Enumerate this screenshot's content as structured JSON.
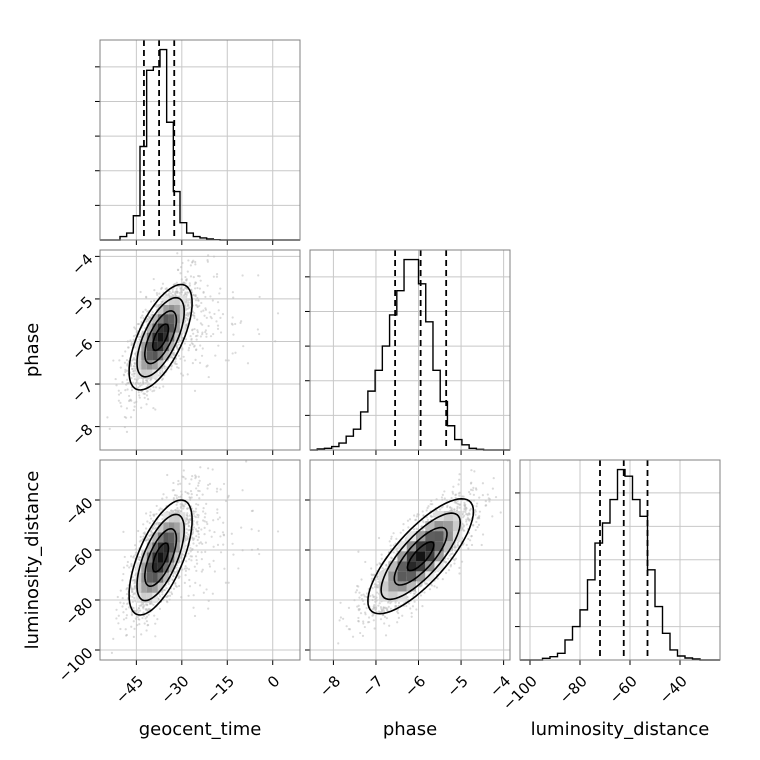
{
  "chart_data": {
    "type": "corner",
    "parameters": [
      "geocent_time",
      "phase",
      "luminosity_distance"
    ],
    "axis_labels": {
      "x": [
        "geocent_time",
        "phase",
        "luminosity_distance"
      ],
      "y": [
        "phase",
        "luminosity_distance"
      ]
    },
    "ranges": {
      "geocent_time": [
        -57,
        9
      ],
      "phase": [
        -8.55,
        -3.85
      ],
      "luminosity_distance": [
        -104,
        -24
      ]
    },
    "ticks": {
      "geocent_time": [
        {
          "v": -45,
          "label": "−45"
        },
        {
          "v": -30,
          "label": "−30"
        },
        {
          "v": -15,
          "label": "−15"
        },
        {
          "v": 0,
          "label": "0"
        }
      ],
      "phase": [
        {
          "v": -8,
          "label": "−8"
        },
        {
          "v": -7,
          "label": "−7"
        },
        {
          "v": -6,
          "label": "−6"
        },
        {
          "v": -5,
          "label": "−5"
        },
        {
          "v": -4,
          "label": "−4"
        }
      ],
      "luminosity_distance": [
        {
          "v": -100,
          "label": "−100"
        },
        {
          "v": -80,
          "label": "−80"
        },
        {
          "v": -60,
          "label": "−60"
        },
        {
          "v": -40,
          "label": "−40"
        }
      ]
    },
    "quantiles": {
      "geocent_time": [
        -42.5,
        -37.5,
        -32.5
      ],
      "phase": [
        -6.55,
        -5.95,
        -5.35
      ],
      "luminosity_distance": [
        -72,
        -62.5,
        -53
      ]
    },
    "histograms": {
      "geocent_time": {
        "bin_edges": [
          -57,
          -54.8,
          -52.6,
          -50.4,
          -48.2,
          -46,
          -43.8,
          -41.6,
          -39.4,
          -37.2,
          -35,
          -32.8,
          -30.6,
          -28.4,
          -26.2,
          -24,
          -21.8,
          -19.6,
          -17.4,
          -15.2,
          -13,
          -10.8,
          -8.6,
          -6.4,
          -4.2,
          -2,
          0.2,
          2.4,
          4.6,
          6.8,
          9
        ],
        "counts": [
          0,
          0,
          0,
          1,
          2,
          7,
          27,
          49,
          50,
          55,
          34,
          14,
          5,
          2,
          1,
          0.6,
          0.3,
          0.1,
          0,
          0,
          0,
          0,
          0,
          0,
          0,
          0,
          0,
          0,
          0,
          0
        ]
      },
      "phase": {
        "bin_edges": [
          -8.55,
          -8.38,
          -8.21,
          -8.04,
          -7.87,
          -7.7,
          -7.53,
          -7.36,
          -7.19,
          -7.02,
          -6.85,
          -6.68,
          -6.51,
          -6.34,
          -6.17,
          -6,
          -5.83,
          -5.66,
          -5.49,
          -5.32,
          -5.15,
          -4.98,
          -4.81,
          -4.64,
          -4.47,
          -4.3,
          -4.13,
          -3.96,
          -3.85
        ],
        "counts": [
          0,
          0.3,
          0.5,
          1,
          2,
          4,
          6,
          11,
          17,
          23,
          30,
          39,
          46,
          55,
          55,
          48,
          37,
          23,
          14,
          7,
          3,
          1.5,
          0.5,
          0.2,
          0,
          0,
          0,
          0
        ]
      },
      "luminosity_distance": {
        "bin_edges": [
          -104,
          -101,
          -98,
          -95,
          -92,
          -89,
          -86,
          -83,
          -80,
          -77,
          -74,
          -71,
          -68,
          -65,
          -62,
          -59,
          -56,
          -53,
          -50,
          -47,
          -44,
          -41,
          -38,
          -35,
          -32,
          -29,
          -26,
          -24
        ],
        "counts": [
          0,
          0,
          0,
          0.5,
          1,
          2,
          6,
          10,
          15,
          24,
          35,
          41,
          48,
          57,
          55,
          48,
          43,
          27,
          16,
          8,
          3,
          1.2,
          0.6,
          0.3,
          0,
          0,
          0
        ]
      }
    },
    "pair_distributions": [
      {
        "x": "geocent_time",
        "y": "phase",
        "center": [
          -37,
          -5.9
        ],
        "sd": [
          5.2,
          0.62
        ],
        "rho": 0.65
      },
      {
        "x": "geocent_time",
        "y": "luminosity_distance",
        "center": [
          -37,
          -63
        ],
        "sd": [
          5.2,
          11.5
        ],
        "rho": 0.65
      },
      {
        "x": "phase",
        "y": "luminosity_distance",
        "center": [
          -5.95,
          -62.5
        ],
        "sd": [
          0.62,
          11.5
        ],
        "rho": 0.78
      }
    ],
    "contour_levels_sigma": [
      0.5,
      1.0,
      1.5,
      2.0
    ],
    "grid": true,
    "colors": {
      "line": "#000000",
      "grid": "#c8c8c8",
      "frame": "#808080",
      "scatter": "#bbbbbb"
    }
  }
}
